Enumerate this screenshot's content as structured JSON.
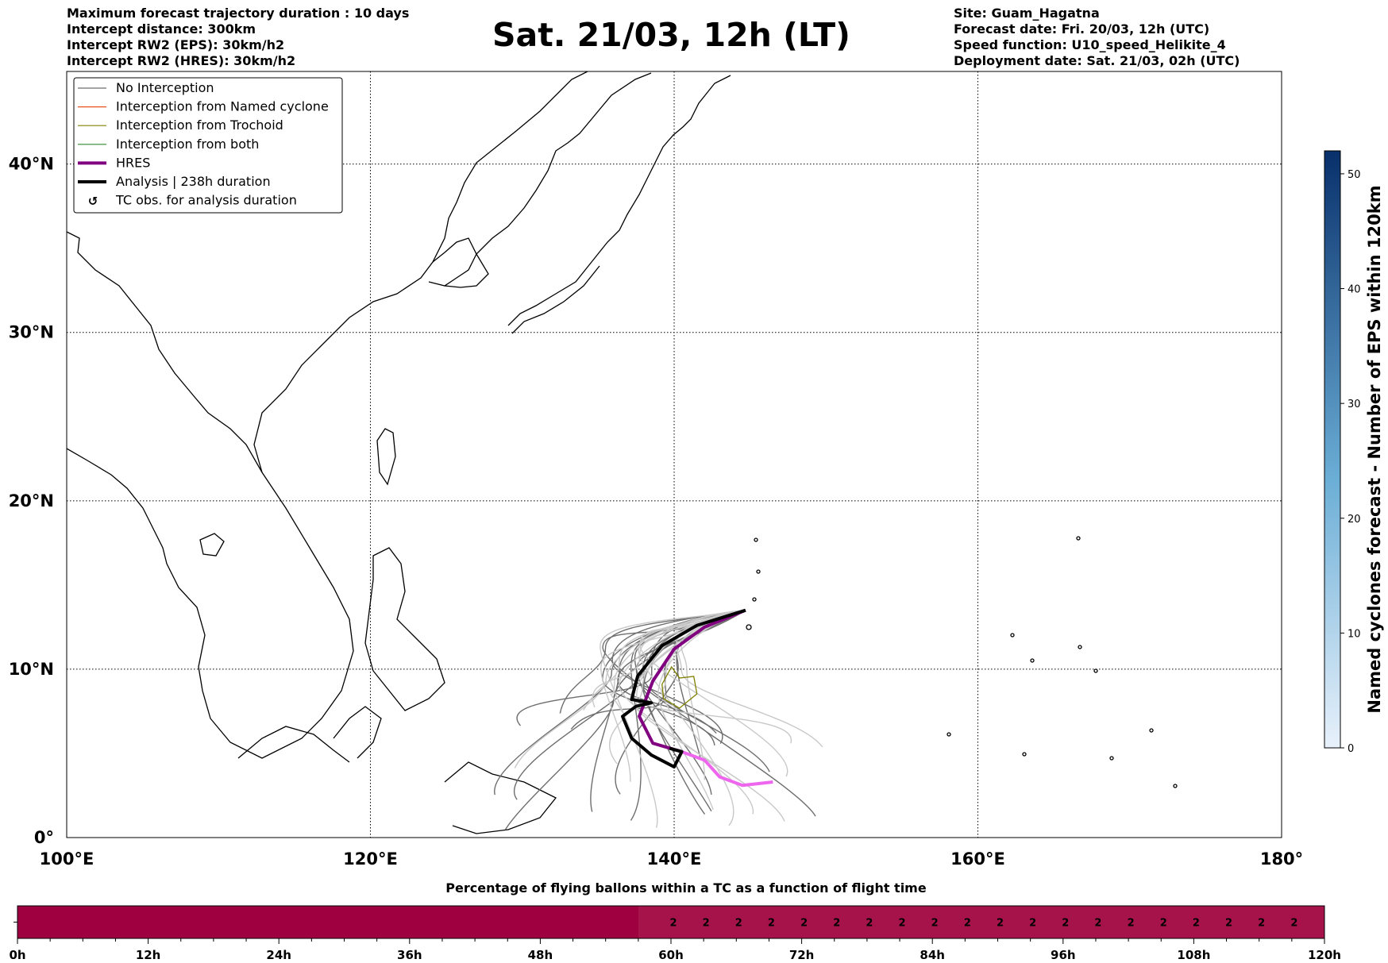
{
  "header": {
    "left_lines": [
      "Maximum forecast trajectory duration : 10 days",
      "Intercept distance: 300km",
      "Intercept RW2 (EPS):  30km/h2",
      "Intercept RW2 (HRES): 30km/h2"
    ],
    "title": "Sat. 21/03, 12h (LT)",
    "right_lines": [
      "Site: Guam_Hagatna",
      "Forecast date: Fri. 20/03, 12h (UTC)",
      "Speed function: U10_speed_Helikite_4",
      "Deployment date: Sat. 21/03, 02h (UTC)"
    ]
  },
  "legend": {
    "items": [
      {
        "label": "No Interception",
        "color": "#6e6e6e"
      },
      {
        "label": "Interception from Named cyclone",
        "color": "#e8531c"
      },
      {
        "label": "Interception from Trochoid",
        "color": "#808000"
      },
      {
        "label": "Interception from both",
        "color": "#2e8b2e"
      },
      {
        "label": "HRES",
        "color": "#800080"
      },
      {
        "label": "Analysis | 238h duration",
        "color": "#000000"
      },
      {
        "label": "TC obs. for analysis duration",
        "color": "#000000"
      }
    ]
  },
  "colorbar": {
    "label": "Named cyclones forecast - Number of EPS within 120km",
    "ticks": [
      "0",
      "10",
      "20",
      "30",
      "40",
      "50"
    ],
    "min": 0,
    "max": 52,
    "color_low": "#e8f1fb",
    "color_high": "#08306b"
  },
  "bottom_bar": {
    "title": "Percentage of flying ballons within a TC as a function of flight time",
    "ticks": [
      "0h",
      "12h",
      "24h",
      "36h",
      "48h",
      "60h",
      "72h",
      "84h",
      "96h",
      "108h",
      "120h"
    ],
    "first_value_hour": 57,
    "value_label": "2",
    "value_hours": [
      60,
      63,
      66,
      69,
      72,
      75,
      78,
      81,
      84,
      87,
      90,
      93,
      96,
      99,
      102,
      105,
      108,
      111,
      114,
      117
    ],
    "color_empty": "#9e0040",
    "color_value": "#a5134a"
  },
  "chart_data": {
    "type": "line",
    "xlabel": "",
    "ylabel": "",
    "xlim": [
      100,
      180
    ],
    "ylim": [
      0,
      45.5
    ],
    "x_ticks": [
      "100°E",
      "120°E",
      "140°E",
      "160°E",
      "180°"
    ],
    "y_ticks": [
      "0°",
      "10°N",
      "20°N",
      "30°N",
      "40°N"
    ],
    "grid": true,
    "legend_position": "top-left",
    "launch_site": [
      144.7,
      13.5
    ],
    "series": [
      {
        "name": "HRES",
        "color": "#800080",
        "points": [
          [
            144.7,
            13.5
          ],
          [
            142,
            12.5
          ],
          [
            140,
            11.2
          ],
          [
            138.6,
            9.3
          ],
          [
            137.7,
            7.2
          ],
          [
            138.6,
            5.6
          ],
          [
            140.5,
            5.1
          ],
          [
            142,
            4.6
          ],
          [
            143,
            3.6
          ],
          [
            144.5,
            3.1
          ],
          [
            146.5,
            3.3
          ]
        ]
      },
      {
        "name": "Analysis | 238h duration",
        "color": "#000000",
        "points": [
          [
            144.7,
            13.5
          ],
          [
            141.5,
            12.6
          ],
          [
            139.2,
            11.4
          ],
          [
            137.6,
            9.6
          ],
          [
            137.2,
            8.2
          ],
          [
            138.5,
            8.0
          ],
          [
            137.5,
            7.8
          ],
          [
            136.6,
            7.2
          ],
          [
            137.2,
            5.9
          ],
          [
            138.5,
            4.9
          ],
          [
            140,
            4.2
          ],
          [
            140.5,
            5.1
          ],
          [
            139.7,
            5.3
          ]
        ]
      }
    ]
  }
}
